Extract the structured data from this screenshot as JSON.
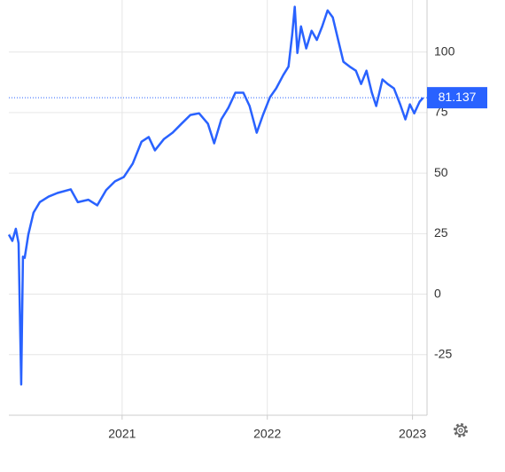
{
  "chart_data": {
    "type": "line",
    "color": "#2962ff",
    "grid": true,
    "xlim": [
      2020.22,
      2023.1
    ],
    "xticks": [
      2021,
      2022,
      2023
    ],
    "ylim": [
      -50,
      121.5
    ],
    "yticks": [
      -25,
      0,
      25,
      50,
      75,
      100
    ],
    "x": [
      2020.22,
      2020.244,
      2020.268,
      2020.287,
      2020.305,
      2020.317,
      2020.329,
      2020.354,
      2020.39,
      2020.433,
      2020.494,
      2020.555,
      2020.646,
      2020.695,
      2020.768,
      2020.829,
      2020.89,
      2020.951,
      2021.012,
      2021.073,
      2021.134,
      2021.183,
      2021.226,
      2021.287,
      2021.348,
      2021.409,
      2021.47,
      2021.53,
      2021.591,
      2021.634,
      2021.683,
      2021.732,
      2021.78,
      2021.835,
      2021.878,
      2021.927,
      2021.97,
      2022.018,
      2022.061,
      2022.11,
      2022.146,
      2022.171,
      2022.189,
      2022.207,
      2022.232,
      2022.268,
      2022.305,
      2022.341,
      2022.378,
      2022.415,
      2022.451,
      2022.488,
      2022.524,
      2022.567,
      2022.61,
      2022.646,
      2022.683,
      2022.72,
      2022.75,
      2022.793,
      2022.829,
      2022.872,
      2022.915,
      2022.951,
      2022.982,
      2023.012,
      2023.049,
      2023.073
    ],
    "values": [
      24.6,
      22,
      27,
      21,
      -37.3,
      15.5,
      15,
      24.6,
      33.7,
      38,
      40.3,
      41.8,
      43.3,
      38,
      39,
      36.7,
      43,
      46.6,
      48.4,
      53.9,
      63,
      64.9,
      59.4,
      64,
      66.7,
      70.4,
      74,
      74.7,
      70.4,
      62.3,
      72.2,
      77,
      83.2,
      83.2,
      77.7,
      66.7,
      74,
      81.3,
      85,
      90.5,
      94,
      107,
      118.7,
      99.6,
      110.6,
      101.5,
      108.8,
      105,
      110.6,
      117.2,
      114.3,
      105,
      96,
      94,
      92.3,
      86.8,
      92.3,
      83.2,
      77.7,
      88.7,
      86.8,
      85,
      78.4,
      72.2,
      78.4,
      74.7,
      79.5,
      81.137
    ]
  }
}
